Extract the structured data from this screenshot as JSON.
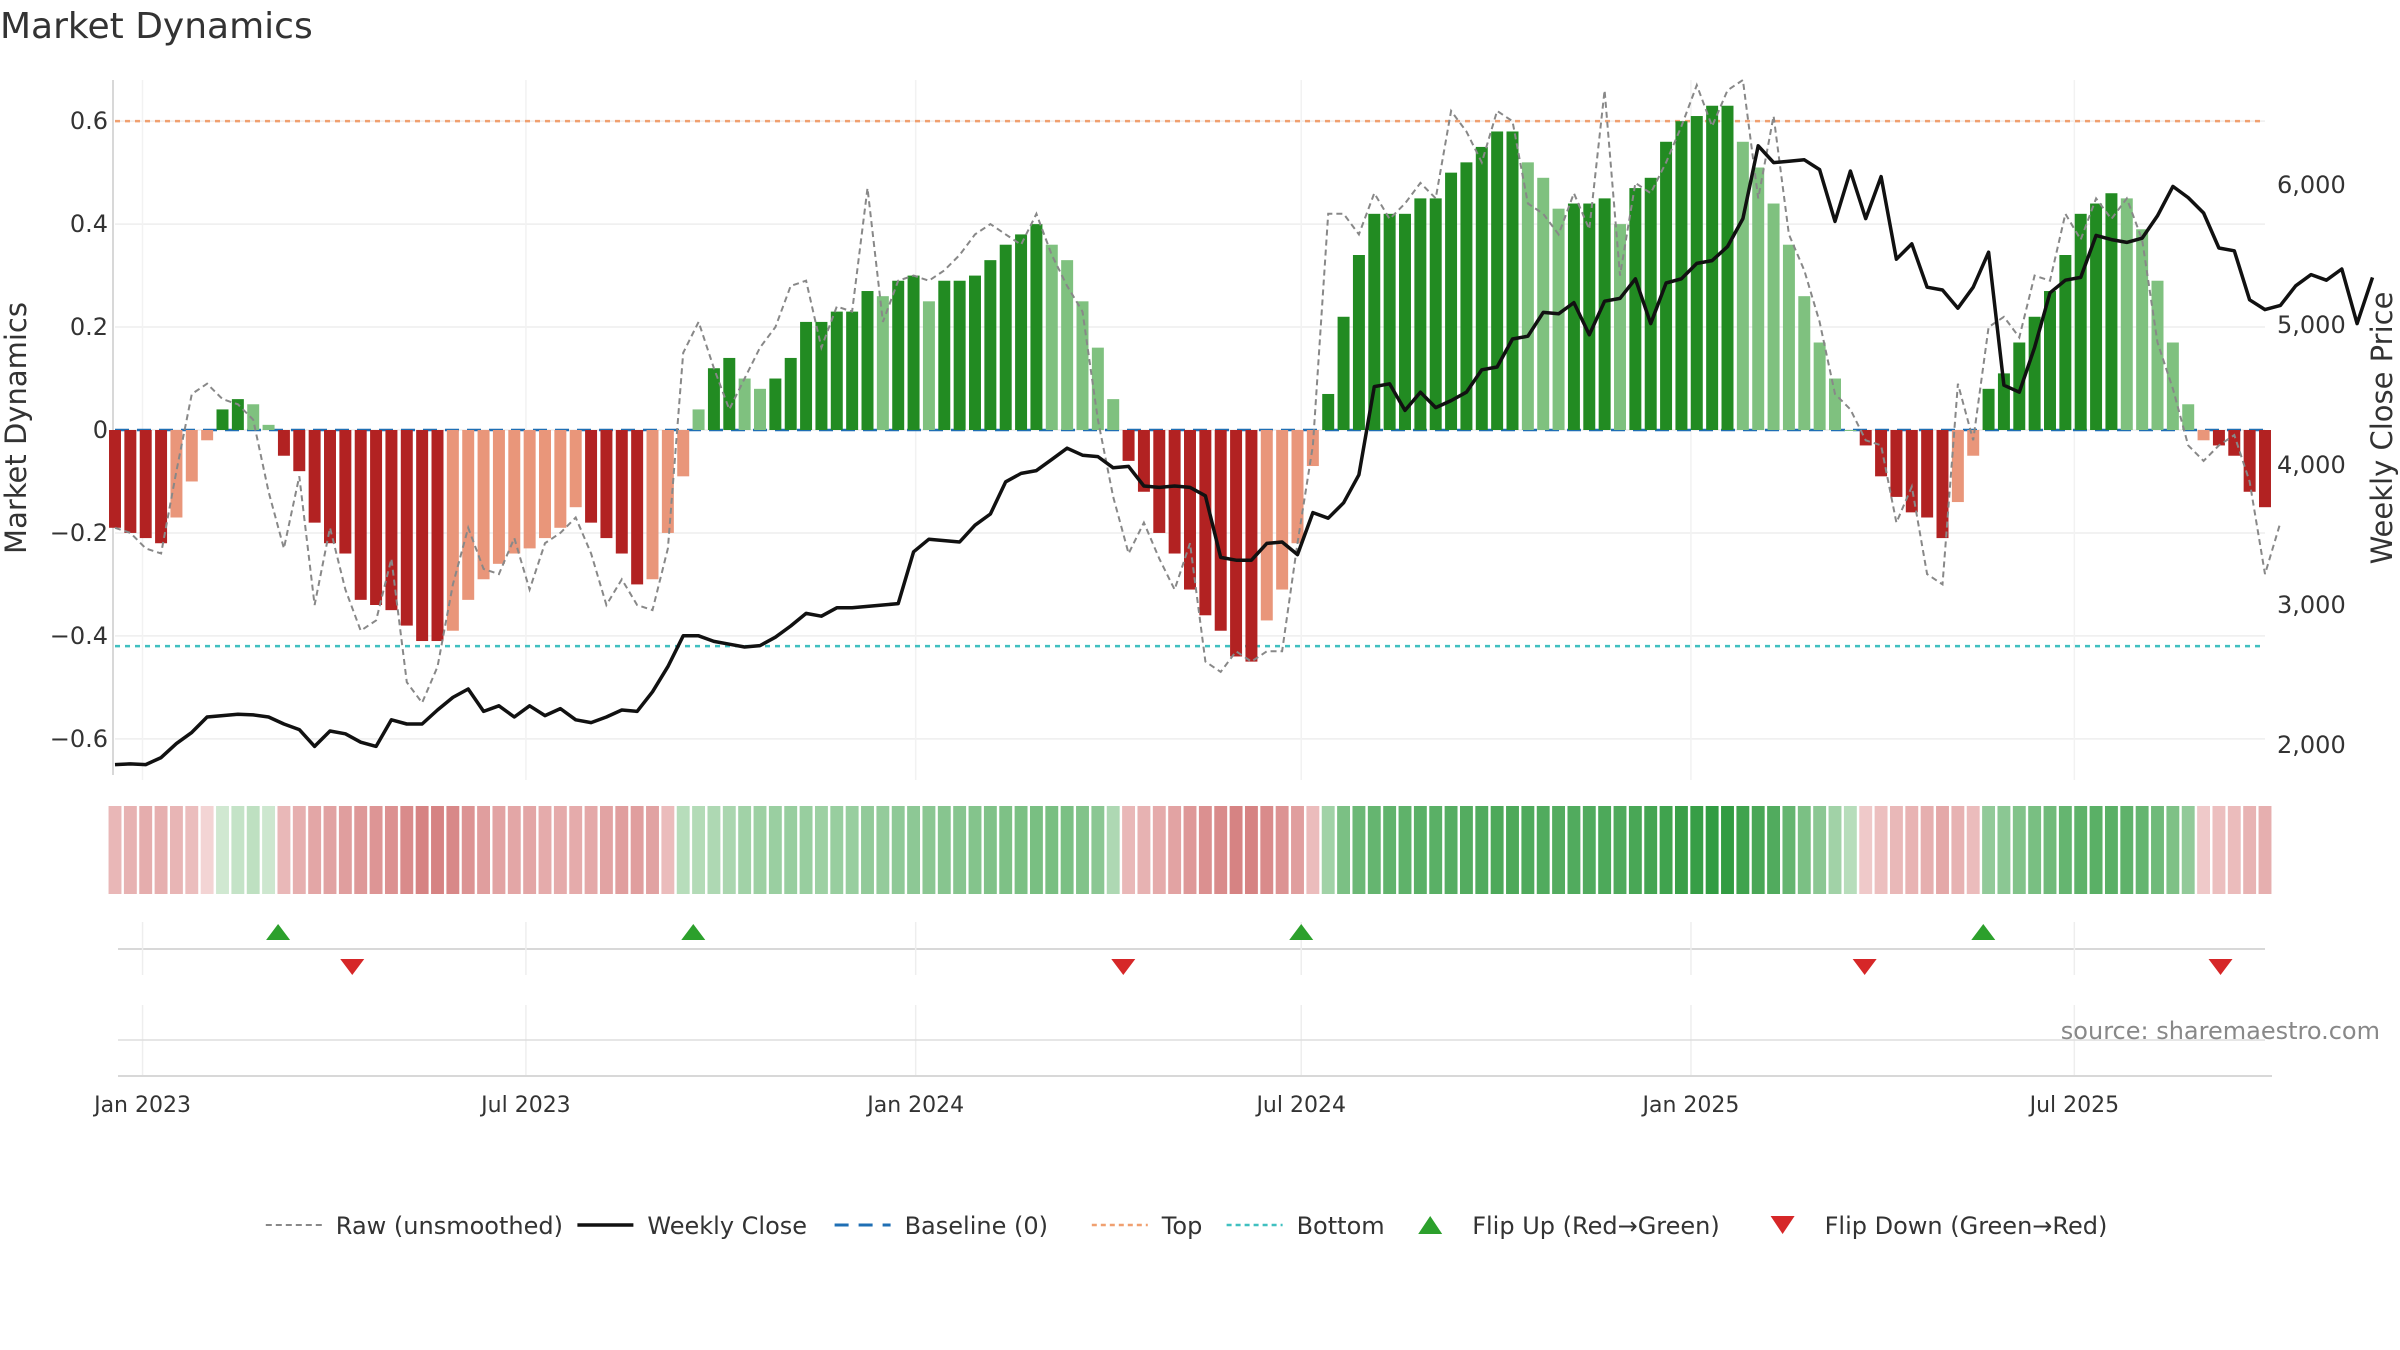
{
  "chart_data": {
    "type": "bar",
    "title": "Market Dynamics",
    "ylabel_left": "Market Dynamics",
    "ylabel_right": "Weekly Close Price",
    "source": "source: sharemaestro.com",
    "y_left": {
      "range": [
        -0.68,
        0.68
      ],
      "ticks": [
        -0.6,
        -0.4,
        -0.2,
        0,
        0.2,
        0.4,
        0.6
      ],
      "tick_labels": [
        "−0.6",
        "−0.4",
        "−0.2",
        "0",
        "0.2",
        "0.4",
        "0.6"
      ]
    },
    "y_right": {
      "range": [
        1750,
        6750
      ],
      "ticks": [
        2000,
        3000,
        4000,
        5000,
        6000
      ],
      "tick_labels": [
        "2,000",
        "3,000",
        "4,000",
        "5,000",
        "6,000"
      ]
    },
    "x_ticks": [
      {
        "date": "2023-01-01",
        "label": "Jan 2023"
      },
      {
        "date": "2023-07-01",
        "label": "Jul 2023"
      },
      {
        "date": "2024-01-01",
        "label": "Jan 2024"
      },
      {
        "date": "2024-07-01",
        "label": "Jul 2024"
      },
      {
        "date": "2025-01-01",
        "label": "Jan 2025"
      },
      {
        "date": "2025-07-01",
        "label": "Jul 2025"
      }
    ],
    "date_range": [
      "2022-12-19",
      "2025-09-29"
    ],
    "top_level": 0.6,
    "bottom_level": -0.42,
    "bars": [
      -0.19,
      -0.2,
      -0.21,
      -0.22,
      -0.17,
      -0.1,
      -0.02,
      0.04,
      0.06,
      0.05,
      0.01,
      -0.05,
      -0.08,
      -0.18,
      -0.22,
      -0.24,
      -0.33,
      -0.34,
      -0.35,
      -0.38,
      -0.41,
      -0.41,
      -0.39,
      -0.33,
      -0.29,
      -0.26,
      -0.24,
      -0.23,
      -0.21,
      -0.19,
      -0.15,
      -0.18,
      -0.21,
      -0.24,
      -0.3,
      -0.29,
      -0.2,
      -0.09,
      0.04,
      0.12,
      0.14,
      0.1,
      0.08,
      0.1,
      0.14,
      0.21,
      0.21,
      0.23,
      0.23,
      0.27,
      0.26,
      0.29,
      0.3,
      0.25,
      0.29,
      0.29,
      0.3,
      0.33,
      0.36,
      0.38,
      0.4,
      0.36,
      0.33,
      0.25,
      0.16,
      0.06,
      -0.06,
      -0.12,
      -0.2,
      -0.24,
      -0.31,
      -0.36,
      -0.39,
      -0.44,
      -0.45,
      -0.37,
      -0.31,
      -0.22,
      -0.07,
      0.07,
      0.22,
      0.34,
      0.42,
      0.42,
      0.42,
      0.45,
      0.45,
      0.5,
      0.52,
      0.55,
      0.58,
      0.58,
      0.52,
      0.49,
      0.43,
      0.44,
      0.44,
      0.45,
      0.4,
      0.47,
      0.49,
      0.56,
      0.6,
      0.61,
      0.63,
      0.63,
      0.56,
      0.51,
      0.44,
      0.36,
      0.26,
      0.17,
      0.1,
      0.0,
      -0.03,
      -0.09,
      -0.13,
      -0.16,
      -0.17,
      -0.21,
      -0.14,
      -0.05,
      0.08,
      0.11,
      0.17,
      0.22,
      0.27,
      0.34,
      0.42,
      0.44,
      0.46,
      0.45,
      0.39,
      0.29,
      0.17,
      0.05,
      -0.02,
      -0.03,
      -0.05,
      -0.12,
      -0.15
    ],
    "raw": [
      -0.19,
      -0.2,
      -0.23,
      -0.24,
      -0.08,
      0.07,
      0.09,
      0.06,
      0.05,
      0.02,
      -0.12,
      -0.23,
      -0.09,
      -0.34,
      -0.19,
      -0.31,
      -0.39,
      -0.37,
      -0.25,
      -0.49,
      -0.53,
      -0.46,
      -0.3,
      -0.19,
      -0.27,
      -0.28,
      -0.21,
      -0.31,
      -0.22,
      -0.2,
      -0.17,
      -0.24,
      -0.34,
      -0.29,
      -0.34,
      -0.35,
      -0.23,
      0.15,
      0.21,
      0.12,
      0.04,
      0.1,
      0.16,
      0.2,
      0.28,
      0.29,
      0.16,
      0.24,
      0.23,
      0.47,
      0.21,
      0.29,
      0.3,
      0.29,
      0.31,
      0.34,
      0.38,
      0.4,
      0.38,
      0.36,
      0.42,
      0.34,
      0.28,
      0.23,
      0.02,
      -0.13,
      -0.24,
      -0.18,
      -0.25,
      -0.31,
      -0.22,
      -0.45,
      -0.47,
      -0.43,
      -0.45,
      -0.43,
      -0.43,
      -0.22,
      -0.03,
      0.42,
      0.42,
      0.38,
      0.46,
      0.41,
      0.44,
      0.48,
      0.45,
      0.62,
      0.58,
      0.52,
      0.62,
      0.6,
      0.44,
      0.42,
      0.38,
      0.46,
      0.39,
      0.66,
      0.3,
      0.48,
      0.46,
      0.52,
      0.59,
      0.67,
      0.59,
      0.66,
      0.68,
      0.45,
      0.61,
      0.38,
      0.31,
      0.21,
      0.07,
      0.04,
      -0.02,
      -0.03,
      -0.18,
      -0.11,
      -0.28,
      -0.3,
      0.09,
      -0.02,
      0.2,
      0.22,
      0.18,
      0.3,
      0.29,
      0.42,
      0.37,
      0.45,
      0.41,
      0.45,
      0.37,
      0.17,
      0.08,
      -0.03,
      -0.06,
      -0.03,
      -0.01,
      -0.1,
      -0.28,
      -0.18
    ],
    "weekly_close": [
      1860,
      1865,
      1860,
      1910,
      2010,
      2090,
      2200,
      2210,
      2220,
      2215,
      2200,
      2150,
      2110,
      1990,
      2100,
      2080,
      2020,
      1990,
      2180,
      2150,
      2150,
      2250,
      2340,
      2400,
      2240,
      2280,
      2200,
      2280,
      2210,
      2260,
      2180,
      2160,
      2200,
      2250,
      2240,
      2380,
      2560,
      2780,
      2780,
      2740,
      2720,
      2700,
      2710,
      2770,
      2850,
      2940,
      2920,
      2980,
      2980,
      2990,
      3000,
      3010,
      3380,
      3470,
      3460,
      3450,
      3570,
      3650,
      3880,
      3940,
      3960,
      4040,
      4120,
      4070,
      4060,
      3980,
      3990,
      3850,
      3840,
      3850,
      3840,
      3780,
      3340,
      3320,
      3320,
      3440,
      3450,
      3360,
      3660,
      3620,
      3730,
      3930,
      4560,
      4580,
      4390,
      4520,
      4410,
      4460,
      4520,
      4680,
      4700,
      4900,
      4920,
      5090,
      5080,
      5160,
      4930,
      5170,
      5190,
      5330,
      5010,
      5300,
      5330,
      5440,
      5460,
      5560,
      5760,
      6280,
      6160,
      6170,
      6180,
      6110,
      5740,
      6100,
      5760,
      6060,
      5470,
      5580,
      5270,
      5250,
      5120,
      5270,
      5520,
      4570,
      4520,
      4840,
      5230,
      5320,
      5340,
      5640,
      5610,
      5590,
      5620,
      5780,
      5990,
      5910,
      5800,
      5550,
      5530,
      5180,
      5110,
      5140,
      5280,
      5360,
      5320,
      5400,
      5010,
      5340
    ],
    "color_bar_values": [
      -0.23,
      -0.26,
      -0.29,
      -0.28,
      -0.24,
      -0.19,
      -0.05,
      0.07,
      0.12,
      0.15,
      0.08,
      -0.22,
      -0.28,
      -0.33,
      -0.36,
      -0.38,
      -0.42,
      -0.44,
      -0.46,
      -0.5,
      -0.55,
      -0.55,
      -0.52,
      -0.45,
      -0.38,
      -0.35,
      -0.33,
      -0.33,
      -0.3,
      -0.3,
      -0.3,
      -0.32,
      -0.35,
      -0.38,
      -0.38,
      -0.36,
      -0.2,
      0.18,
      0.2,
      0.22,
      0.24,
      0.28,
      0.3,
      0.31,
      0.32,
      0.32,
      0.3,
      0.32,
      0.32,
      0.35,
      0.34,
      0.36,
      0.37,
      0.38,
      0.4,
      0.4,
      0.41,
      0.43,
      0.44,
      0.45,
      0.46,
      0.46,
      0.45,
      0.42,
      0.38,
      0.22,
      -0.22,
      -0.26,
      -0.3,
      -0.35,
      -0.42,
      -0.47,
      -0.5,
      -0.55,
      -0.55,
      -0.5,
      -0.45,
      -0.38,
      -0.2,
      0.28,
      0.45,
      0.52,
      0.55,
      0.57,
      0.58,
      0.6,
      0.6,
      0.62,
      0.63,
      0.64,
      0.66,
      0.66,
      0.65,
      0.64,
      0.63,
      0.64,
      0.64,
      0.66,
      0.65,
      0.68,
      0.7,
      0.72,
      0.75,
      0.76,
      0.78,
      0.78,
      0.72,
      0.68,
      0.64,
      0.55,
      0.45,
      0.38,
      0.28,
      0.18,
      -0.12,
      -0.18,
      -0.22,
      -0.25,
      -0.28,
      -0.32,
      -0.26,
      -0.2,
      0.35,
      0.38,
      0.42,
      0.46,
      0.5,
      0.55,
      0.58,
      0.6,
      0.6,
      0.58,
      0.55,
      0.5,
      0.44,
      0.35,
      -0.12,
      -0.18,
      -0.2,
      -0.25,
      -0.28
    ],
    "flip_up_dates": [
      "2023-03-06",
      "2023-09-18",
      "2024-07-01",
      "2025-05-19"
    ],
    "flip_down_dates": [
      "2023-04-10",
      "2024-04-08",
      "2025-03-24",
      "2025-09-08"
    ],
    "legend": [
      {
        "label": "Raw (unsmoothed)",
        "marker": "dashed-line",
        "color": "#888888"
      },
      {
        "label": "Weekly Close",
        "marker": "solid-line",
        "color": "#111111"
      },
      {
        "label": "Baseline (0)",
        "marker": "long-dash-line",
        "color": "#1f6fb4"
      },
      {
        "label": "Top",
        "marker": "dotted-line",
        "color": "#f0a070"
      },
      {
        "label": "Bottom",
        "marker": "dotted-line",
        "color": "#40c0c0"
      },
      {
        "label": "Flip Up (Red→Green)",
        "marker": "triangle-up",
        "color": "#2ca02c"
      },
      {
        "label": "Flip Down (Green→Red)",
        "marker": "triangle-down",
        "color": "#d62728"
      }
    ],
    "legend_position": "bottom-center",
    "grid": true
  },
  "colors": {
    "positive_strong": "#228b22",
    "positive_light": "#7fc17f",
    "negative_strong": "#b22222",
    "negative_light": "#e9967a",
    "baseline": "#1f6fb4",
    "top": "#f0a070",
    "bottom": "#40c0c0",
    "flip_up": "#2ca02c",
    "flip_down": "#d62728"
  }
}
